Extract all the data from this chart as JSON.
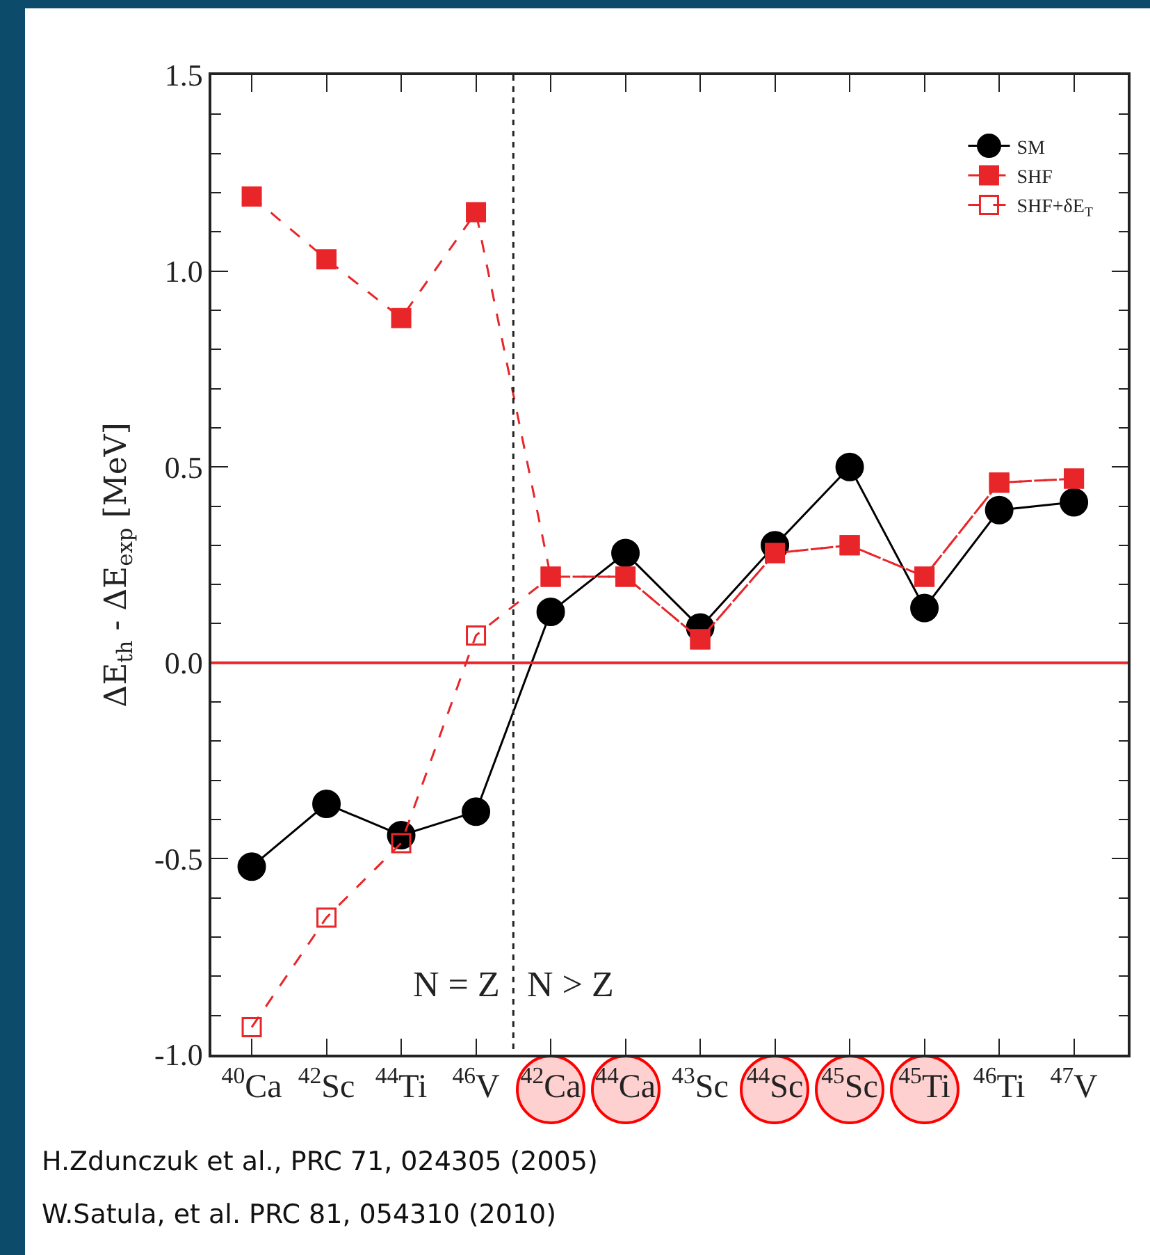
{
  "chart_data": {
    "type": "line",
    "ylabel": "ΔE$_{th}$ - ΔE$_{exp}$ [MeV]",
    "categories": [
      "$^{40}$Ca",
      "$^{42}$Sc",
      "$^{44}$Ti",
      "$^{46}$V",
      "$^{42}$Ca",
      "$^{44}$Ca",
      "$^{43}$Sc",
      "$^{44}$Sc",
      "$^{45}$Sc",
      "$^{45}$Ti",
      "$^{46}$Ti",
      "$^{47}$V"
    ],
    "series": [
      {
        "name": "SM",
        "color": "#000000",
        "marker": "circle",
        "line_style": "solid",
        "values": [
          -0.52,
          -0.36,
          -0.44,
          -0.38,
          0.13,
          0.28,
          0.09,
          0.3,
          0.5,
          0.14,
          0.39,
          0.41
        ]
      },
      {
        "name": "SHF",
        "color": "#e8262a",
        "marker": "square",
        "line_style": "dashed",
        "values": [
          1.19,
          1.03,
          0.88,
          1.15,
          0.22,
          0.22,
          0.06,
          0.28,
          0.3,
          0.22,
          0.46,
          0.47
        ]
      },
      {
        "name": "SHF+δE$_{T}$",
        "color": "#e8262a",
        "marker": "square-open",
        "line_style": "dashed",
        "values": [
          -0.93,
          -0.65,
          -0.46,
          0.07,
          0.22,
          0.22,
          0.06,
          0.28,
          0.3,
          0.22,
          0.46,
          0.47
        ]
      }
    ],
    "ylim": [
      -1.0,
      1.5
    ],
    "yticks": [
      {
        "value": -1.0,
        "label": "-1.0"
      },
      -0.5,
      {
        "value": 0,
        "label": "0.0"
      },
      0.5,
      {
        "value": 1.0,
        "label": "1.0"
      },
      1.5
    ],
    "ref_lines": [
      {
        "axis": "y",
        "value": 0,
        "color": "#e8262a",
        "line_style": "solid"
      }
    ],
    "annotations": [
      "N = Z",
      "N > Z",
      "H.Zdunczuk  et al., PRC 71, 024305 (2005)",
      "W.Satula, et al. PRC 81, 054310 (2010)"
    ],
    "legend": "top right",
    "grid": false
  }
}
